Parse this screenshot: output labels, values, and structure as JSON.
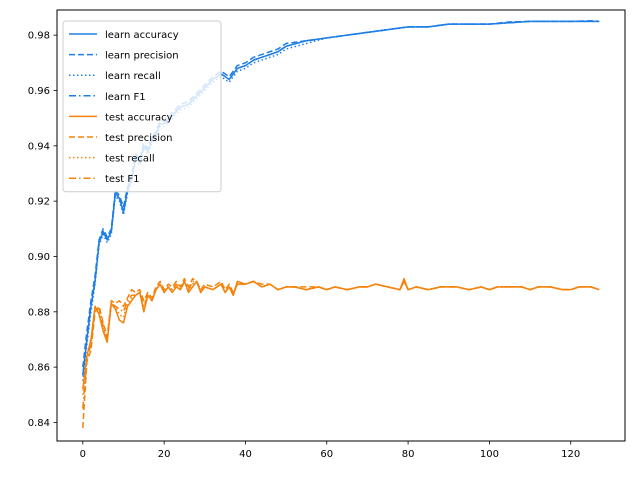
{
  "chart_data": {
    "type": "line",
    "title": "",
    "xlabel": "",
    "ylabel": "",
    "xlim": [
      -6.35,
      133.35
    ],
    "ylim": [
      0.8333,
      0.9891
    ],
    "xticks": [
      0,
      20,
      40,
      60,
      80,
      100,
      120
    ],
    "yticks": [
      0.84,
      0.86,
      0.88,
      0.9,
      0.92,
      0.94,
      0.96,
      0.98
    ],
    "ytick_format": 2,
    "grid": false,
    "legend_position": "top-left",
    "colors": {
      "learn": "#1f7ee6",
      "test": "#f5820a",
      "learn_faint": "#9ccff0",
      "test_faint": "#f7b46a"
    },
    "series": [
      {
        "name": "learn accuracy",
        "group": "learn",
        "style": "solid",
        "x": [
          0,
          1,
          2,
          3,
          4,
          5,
          6,
          7,
          8,
          9,
          10,
          11,
          12,
          13,
          14,
          15,
          16,
          17,
          18,
          19,
          20,
          22,
          24,
          26,
          28,
          30,
          32,
          34,
          36,
          38,
          40,
          42,
          44,
          46,
          48,
          50,
          55,
          60,
          65,
          70,
          75,
          80,
          85,
          90,
          95,
          100,
          105,
          110,
          115,
          120,
          125,
          127
        ],
        "values": [
          0.857,
          0.87,
          0.882,
          0.891,
          0.905,
          0.909,
          0.906,
          0.909,
          0.923,
          0.921,
          0.916,
          0.924,
          0.928,
          0.936,
          0.934,
          0.94,
          0.938,
          0.942,
          0.944,
          0.948,
          0.948,
          0.951,
          0.954,
          0.955,
          0.958,
          0.961,
          0.964,
          0.966,
          0.964,
          0.968,
          0.969,
          0.971,
          0.972,
          0.973,
          0.974,
          0.976,
          0.978,
          0.979,
          0.98,
          0.981,
          0.982,
          0.983,
          0.983,
          0.984,
          0.984,
          0.984,
          0.9845,
          0.985,
          0.985,
          0.985,
          0.985,
          0.985
        ]
      },
      {
        "name": "learn precision",
        "group": "learn",
        "style": "dashed",
        "x": [
          0,
          1,
          2,
          3,
          4,
          5,
          6,
          7,
          8,
          9,
          10,
          11,
          12,
          13,
          14,
          15,
          16,
          17,
          18,
          19,
          20,
          22,
          24,
          26,
          28,
          30,
          32,
          34,
          36,
          38,
          40,
          42,
          44,
          46,
          48,
          50,
          55,
          60,
          65,
          70,
          75,
          80,
          85,
          90,
          95,
          100,
          105,
          110,
          115,
          120,
          125,
          127
        ],
        "values": [
          0.86,
          0.873,
          0.884,
          0.893,
          0.906,
          0.91,
          0.907,
          0.91,
          0.924,
          0.922,
          0.918,
          0.925,
          0.929,
          0.937,
          0.935,
          0.941,
          0.939,
          0.943,
          0.945,
          0.949,
          0.949,
          0.952,
          0.955,
          0.956,
          0.959,
          0.962,
          0.965,
          0.967,
          0.965,
          0.969,
          0.97,
          0.972,
          0.973,
          0.974,
          0.975,
          0.977,
          0.978,
          0.979,
          0.98,
          0.981,
          0.982,
          0.983,
          0.983,
          0.984,
          0.984,
          0.984,
          0.9848,
          0.985,
          0.985,
          0.985,
          0.9852,
          0.985
        ]
      },
      {
        "name": "learn recall",
        "group": "learn",
        "style": "dotted",
        "x": [
          0,
          1,
          2,
          3,
          4,
          5,
          6,
          7,
          8,
          9,
          10,
          11,
          12,
          13,
          14,
          15,
          16,
          17,
          18,
          19,
          20,
          22,
          24,
          26,
          28,
          30,
          32,
          34,
          36,
          38,
          40,
          42,
          44,
          46,
          48,
          50,
          55,
          60,
          65,
          70,
          75,
          80,
          85,
          90,
          95,
          100,
          105,
          110,
          115,
          120,
          125,
          127
        ],
        "values": [
          0.855,
          0.868,
          0.88,
          0.89,
          0.904,
          0.908,
          0.905,
          0.908,
          0.922,
          0.92,
          0.915,
          0.923,
          0.927,
          0.935,
          0.933,
          0.939,
          0.937,
          0.941,
          0.943,
          0.947,
          0.947,
          0.95,
          0.953,
          0.954,
          0.957,
          0.96,
          0.963,
          0.965,
          0.963,
          0.967,
          0.968,
          0.97,
          0.971,
          0.972,
          0.973,
          0.975,
          0.977,
          0.979,
          0.98,
          0.981,
          0.982,
          0.983,
          0.983,
          0.984,
          0.984,
          0.984,
          0.9845,
          0.985,
          0.985,
          0.985,
          0.985,
          0.985
        ]
      },
      {
        "name": "learn F1",
        "group": "learn",
        "style": "dashdot",
        "x": [
          0,
          1,
          2,
          3,
          4,
          5,
          6,
          7,
          8,
          9,
          10,
          11,
          12,
          13,
          14,
          15,
          16,
          17,
          18,
          19,
          20,
          22,
          24,
          26,
          28,
          30,
          32,
          34,
          36,
          38,
          40,
          42,
          44,
          46,
          48,
          50,
          55,
          60,
          65,
          70,
          75,
          80,
          85,
          90,
          95,
          100,
          105,
          110,
          115,
          120,
          125,
          127
        ],
        "values": [
          0.857,
          0.87,
          0.882,
          0.891,
          0.905,
          0.909,
          0.906,
          0.909,
          0.923,
          0.921,
          0.916,
          0.924,
          0.928,
          0.936,
          0.934,
          0.94,
          0.938,
          0.942,
          0.944,
          0.948,
          0.948,
          0.951,
          0.954,
          0.955,
          0.958,
          0.961,
          0.964,
          0.966,
          0.964,
          0.968,
          0.969,
          0.971,
          0.972,
          0.973,
          0.974,
          0.976,
          0.978,
          0.979,
          0.98,
          0.981,
          0.982,
          0.983,
          0.983,
          0.984,
          0.984,
          0.984,
          0.9845,
          0.985,
          0.985,
          0.985,
          0.985,
          0.985
        ]
      },
      {
        "name": "test accuracy",
        "group": "test",
        "style": "solid",
        "x": [
          0,
          1,
          2,
          3,
          4,
          5,
          6,
          7,
          8,
          9,
          10,
          11,
          12,
          13,
          14,
          15,
          16,
          17,
          18,
          19,
          20,
          21,
          22,
          23,
          24,
          25,
          26,
          27,
          28,
          29,
          30,
          32,
          34,
          35,
          36,
          37,
          38,
          40,
          42,
          44,
          46,
          48,
          50,
          52,
          55,
          58,
          60,
          62,
          65,
          68,
          70,
          72,
          75,
          78,
          79,
          80,
          82,
          85,
          88,
          90,
          92,
          95,
          98,
          100,
          102,
          105,
          108,
          110,
          112,
          115,
          118,
          120,
          122,
          125,
          127
        ],
        "values": [
          0.852,
          0.864,
          0.87,
          0.882,
          0.879,
          0.873,
          0.869,
          0.883,
          0.881,
          0.877,
          0.876,
          0.882,
          0.884,
          0.886,
          0.887,
          0.88,
          0.886,
          0.884,
          0.888,
          0.89,
          0.887,
          0.889,
          0.887,
          0.889,
          0.888,
          0.891,
          0.887,
          0.889,
          0.891,
          0.887,
          0.889,
          0.888,
          0.89,
          0.887,
          0.889,
          0.886,
          0.891,
          0.89,
          0.891,
          0.889,
          0.89,
          0.888,
          0.889,
          0.889,
          0.888,
          0.889,
          0.888,
          0.889,
          0.888,
          0.889,
          0.889,
          0.89,
          0.889,
          0.888,
          0.892,
          0.888,
          0.889,
          0.888,
          0.889,
          0.889,
          0.889,
          0.888,
          0.889,
          0.888,
          0.889,
          0.889,
          0.889,
          0.888,
          0.889,
          0.889,
          0.888,
          0.888,
          0.889,
          0.889,
          0.888
        ]
      },
      {
        "name": "test precision",
        "group": "test",
        "style": "dashed",
        "x": [
          0,
          1,
          2,
          3,
          4,
          5,
          6,
          7,
          8,
          9,
          10,
          11,
          12,
          13,
          14,
          15,
          16,
          17,
          18,
          19,
          20,
          21,
          22,
          23,
          24,
          25,
          26,
          27,
          28,
          29,
          30,
          32,
          34,
          35,
          36,
          37,
          38,
          40,
          42,
          44,
          46,
          48,
          50,
          52,
          55,
          58,
          60,
          62,
          65,
          68,
          70,
          72,
          75,
          78,
          79,
          80,
          82,
          85,
          88,
          90,
          92,
          95,
          98,
          100,
          102,
          105,
          108,
          110,
          112,
          115,
          118,
          120,
          122,
          125,
          127
        ],
        "values": [
          0.838,
          0.862,
          0.866,
          0.88,
          0.882,
          0.876,
          0.871,
          0.884,
          0.883,
          0.884,
          0.882,
          0.885,
          0.888,
          0.887,
          0.888,
          0.884,
          0.887,
          0.885,
          0.889,
          0.891,
          0.888,
          0.89,
          0.889,
          0.891,
          0.889,
          0.892,
          0.889,
          0.892,
          0.891,
          0.888,
          0.89,
          0.889,
          0.891,
          0.888,
          0.89,
          0.887,
          0.89,
          0.89,
          0.891,
          0.89,
          0.89,
          0.888,
          0.889,
          0.889,
          0.889,
          0.889,
          0.888,
          0.889,
          0.888,
          0.889,
          0.889,
          0.89,
          0.889,
          0.888,
          0.891,
          0.888,
          0.889,
          0.888,
          0.889,
          0.889,
          0.889,
          0.888,
          0.889,
          0.888,
          0.889,
          0.889,
          0.889,
          0.888,
          0.889,
          0.889,
          0.888,
          0.888,
          0.889,
          0.889,
          0.888
        ]
      },
      {
        "name": "test recall",
        "group": "test",
        "style": "dotted",
        "x": [
          0,
          1,
          2,
          3,
          4,
          5,
          6,
          7,
          8,
          9,
          10,
          11,
          12,
          13,
          14,
          15,
          16,
          17,
          18,
          19,
          20,
          21,
          22,
          23,
          24,
          25,
          26,
          27,
          28,
          29,
          30,
          32,
          34,
          35,
          36,
          37,
          38,
          40,
          42,
          44,
          46,
          48,
          50,
          52,
          55,
          58,
          60,
          62,
          65,
          68,
          70,
          72,
          75,
          78,
          79,
          80,
          82,
          85,
          88,
          90,
          92,
          95,
          98,
          100,
          102,
          105,
          108,
          110,
          112,
          115,
          118,
          120,
          122,
          125,
          127
        ],
        "values": [
          0.85,
          0.863,
          0.869,
          0.881,
          0.88,
          0.874,
          0.87,
          0.883,
          0.882,
          0.879,
          0.878,
          0.883,
          0.885,
          0.886,
          0.887,
          0.881,
          0.886,
          0.884,
          0.888,
          0.89,
          0.887,
          0.889,
          0.888,
          0.889,
          0.888,
          0.891,
          0.888,
          0.89,
          0.891,
          0.887,
          0.889,
          0.888,
          0.89,
          0.887,
          0.889,
          0.886,
          0.89,
          0.89,
          0.891,
          0.889,
          0.89,
          0.888,
          0.889,
          0.889,
          0.888,
          0.889,
          0.888,
          0.889,
          0.888,
          0.889,
          0.889,
          0.89,
          0.889,
          0.888,
          0.891,
          0.888,
          0.889,
          0.888,
          0.889,
          0.889,
          0.889,
          0.888,
          0.889,
          0.888,
          0.889,
          0.889,
          0.889,
          0.888,
          0.889,
          0.889,
          0.888,
          0.888,
          0.889,
          0.889,
          0.888
        ]
      },
      {
        "name": "test F1",
        "group": "test",
        "style": "dashdot",
        "x": [
          0,
          1,
          2,
          3,
          4,
          5,
          6,
          7,
          8,
          9,
          10,
          11,
          12,
          13,
          14,
          15,
          16,
          17,
          18,
          19,
          20,
          21,
          22,
          23,
          24,
          25,
          26,
          27,
          28,
          29,
          30,
          32,
          34,
          35,
          36,
          37,
          38,
          40,
          42,
          44,
          46,
          48,
          50,
          52,
          55,
          58,
          60,
          62,
          65,
          68,
          70,
          72,
          75,
          78,
          79,
          80,
          82,
          85,
          88,
          90,
          92,
          95,
          98,
          100,
          102,
          105,
          108,
          110,
          112,
          115,
          118,
          120,
          122,
          125,
          127
        ],
        "values": [
          0.845,
          0.863,
          0.868,
          0.881,
          0.881,
          0.875,
          0.87,
          0.883,
          0.882,
          0.881,
          0.88,
          0.884,
          0.886,
          0.886,
          0.887,
          0.882,
          0.886,
          0.884,
          0.888,
          0.89,
          0.887,
          0.889,
          0.888,
          0.89,
          0.888,
          0.891,
          0.888,
          0.891,
          0.891,
          0.887,
          0.889,
          0.888,
          0.89,
          0.887,
          0.889,
          0.886,
          0.89,
          0.89,
          0.891,
          0.889,
          0.89,
          0.888,
          0.889,
          0.889,
          0.888,
          0.889,
          0.888,
          0.889,
          0.888,
          0.889,
          0.889,
          0.89,
          0.889,
          0.888,
          0.891,
          0.888,
          0.889,
          0.888,
          0.889,
          0.889,
          0.889,
          0.888,
          0.889,
          0.888,
          0.889,
          0.889,
          0.889,
          0.888,
          0.889,
          0.889,
          0.888,
          0.888,
          0.889,
          0.889,
          0.888
        ]
      }
    ]
  }
}
